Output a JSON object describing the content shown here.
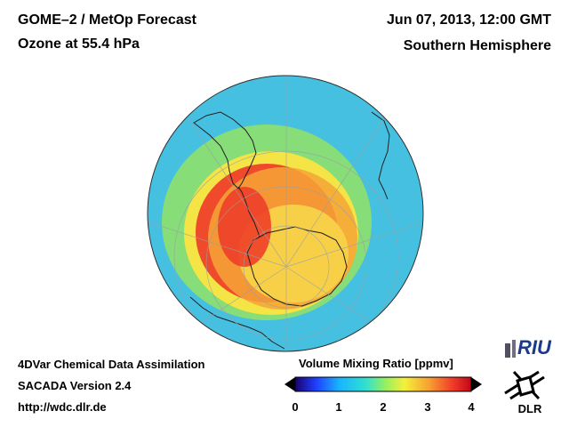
{
  "header": {
    "title_line1": "GOME–2 / MetOp Forecast",
    "title_line2": "Ozone at 55.4 hPa",
    "datetime": "Jun 07, 2013, 12:00 GMT",
    "region": "Southern Hemisphere"
  },
  "footer": {
    "line1": "4DVar Chemical Data Assimilation",
    "line2": "SACADA Version 2.4",
    "line3": "http://wdc.dlr.de"
  },
  "colorbar": {
    "title": "Volume Mixing Ratio [ppmv]",
    "ticks": [
      "0",
      "1",
      "2",
      "3",
      "4"
    ],
    "colors": [
      "#1a0080",
      "#1e3cff",
      "#18b4ff",
      "#30e0d0",
      "#9cf05a",
      "#f4f03c",
      "#f8a030",
      "#f03828",
      "#c00818"
    ]
  },
  "logos": {
    "riu": "RIU",
    "dlr": "DLR"
  },
  "map_colors": {
    "ocean_outer": "#4ec8e0",
    "mid_ring": "#8ee070",
    "inner_ring": "#f4e048",
    "hole_edge": "#f05030",
    "antarctica": "#f6c040"
  }
}
